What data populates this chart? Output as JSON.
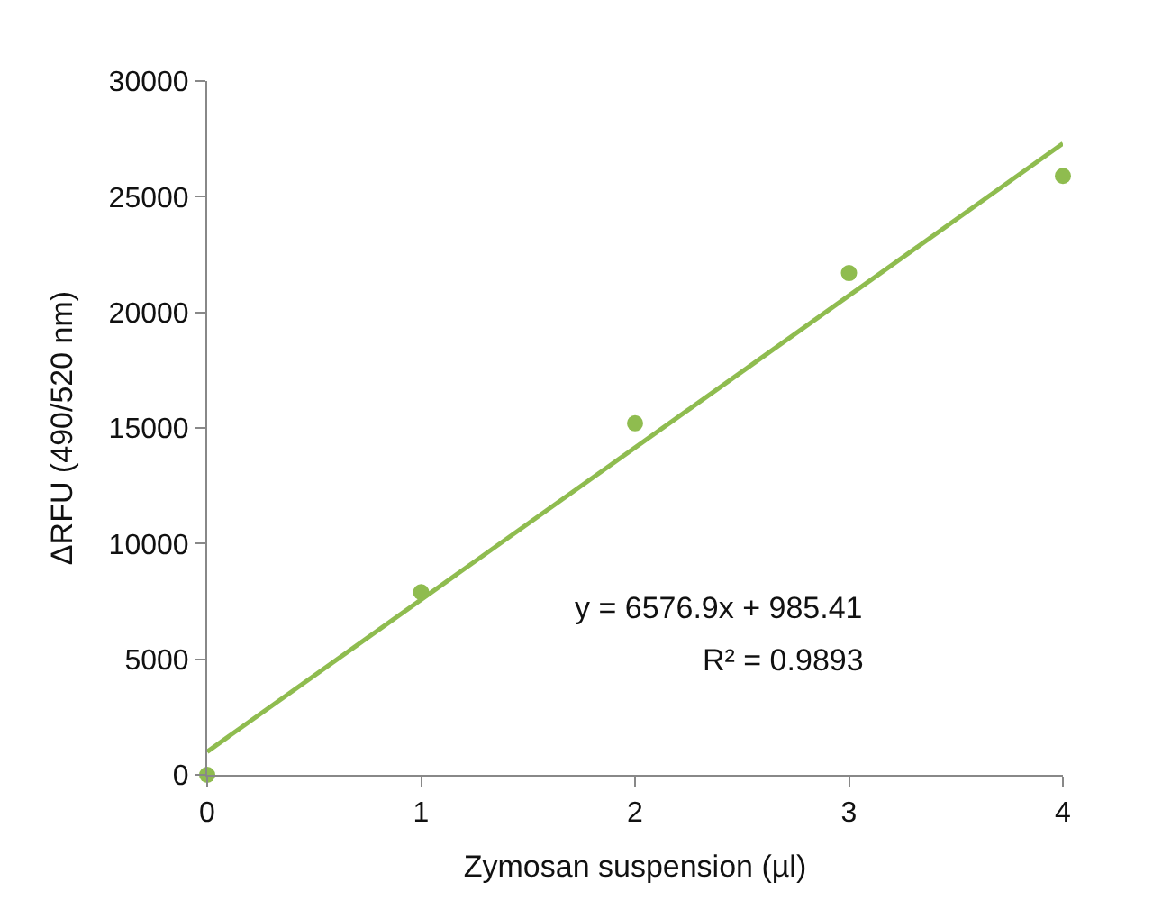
{
  "chart_data": {
    "type": "scatter",
    "xlabel": "Zymosan suspension (µl)",
    "ylabel": "ΔRFU (490/520 nm)",
    "xlim": [
      0,
      4
    ],
    "xticks": [
      0,
      1,
      2,
      3,
      4
    ],
    "ylim": [
      0,
      30000
    ],
    "yticks": [
      0,
      5000,
      10000,
      15000,
      20000,
      25000,
      30000
    ],
    "marker": "circle",
    "series": [
      {
        "color": "#8fbc4f",
        "x": [
          0,
          1,
          2,
          3,
          4
        ],
        "values": [
          0,
          7900,
          15200,
          21700,
          25900
        ]
      },
      {
        "type": "line",
        "color": "#8fbc4f",
        "marker": "none",
        "line_style": "solid",
        "x": [
          0,
          4
        ],
        "values": [
          1000,
          27300
        ]
      }
    ],
    "annotations": [
      "y = 6576.9x + 985.41",
      "R² = 0.9893"
    ]
  }
}
